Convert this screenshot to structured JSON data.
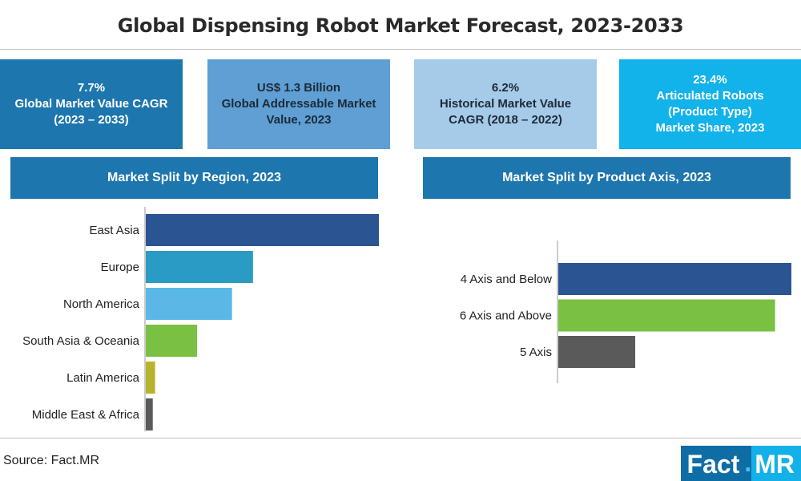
{
  "header": {
    "title": "Global Dispensing Robot Market Forecast, 2023-2033"
  },
  "kpis": [
    {
      "lines": [
        "7.7%",
        "Global Market Value CAGR",
        "(2023 – 2033)"
      ],
      "color": "#1e76ae"
    },
    {
      "lines": [
        "US$ 1.3 Billion",
        "Global Addressable Market",
        "Value, 2023"
      ],
      "color": "#5f9fd3"
    },
    {
      "lines": [
        "6.2%",
        "Historical Market Value",
        "CAGR (2018 – 2022)"
      ],
      "color": "#a6cbe8"
    },
    {
      "lines": [
        "23.4%",
        "Articulated Robots",
        "(Product Type)",
        "Market Share, 2023"
      ],
      "color": "#12b2ea"
    }
  ],
  "footer": {
    "source": "Source: Fact.MR",
    "logo_fact": "Fact",
    "logo_dot": ".",
    "logo_mr": "MR"
  },
  "chart_data": [
    {
      "type": "bar",
      "orientation": "horizontal",
      "title": "Market Split by Region, 2023",
      "categories": [
        "East Asia",
        "Europe",
        "North America",
        "South Asia & Oceania",
        "Latin America",
        "Middle East & Africa"
      ],
      "values": [
        100,
        46,
        37,
        22,
        4,
        3
      ],
      "colors": [
        "#2a5592",
        "#2a9bc4",
        "#5bb8e6",
        "#7ac143",
        "#b6b42d",
        "#5a5a5a"
      ],
      "xlim": [
        0,
        100
      ],
      "grid": false
    },
    {
      "type": "bar",
      "orientation": "horizontal",
      "title": "Market Split by Product Axis, 2023",
      "categories": [
        "4 Axis and Below",
        "6 Axis and Above",
        "5 Axis"
      ],
      "values": [
        100,
        93,
        33
      ],
      "colors": [
        "#2a5592",
        "#7ac143",
        "#5a5a5a"
      ],
      "xlim": [
        0,
        100
      ],
      "grid": false
    }
  ]
}
